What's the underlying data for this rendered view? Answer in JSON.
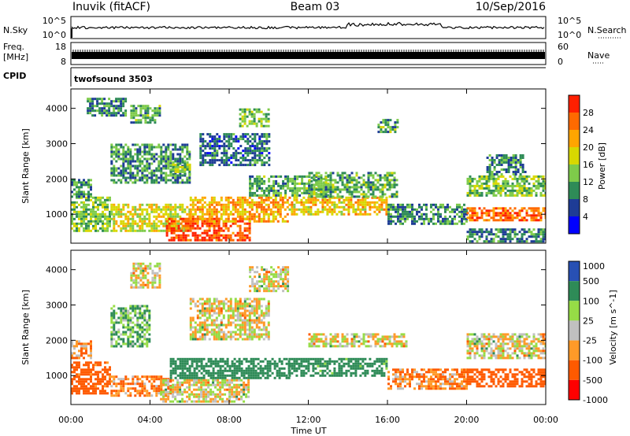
{
  "header": {
    "station": "Inuvik (fitACF)",
    "beam": "Beam 03",
    "date": "10/Sep/2016"
  },
  "noise_panel": {
    "left_label": "N.Sky",
    "right_label": "N.Search",
    "left_ticks": [
      "10^5",
      "10^0"
    ],
    "right_ticks": [
      "10^5",
      "10^0"
    ]
  },
  "freq_panel": {
    "left_label": "Freq.",
    "left_unit": "[MHz]",
    "right_label": "Nave",
    "left_ticks": [
      "18",
      "8"
    ],
    "right_ticks": [
      "60",
      "0"
    ]
  },
  "cpid": {
    "label": "CPID",
    "value": "twofsound 3503"
  },
  "colors": {
    "power": [
      "#0000ff",
      "#1e3c96",
      "#2e8b57",
      "#7ecb4a",
      "#d8d800",
      "#ffa500",
      "#ff6a00",
      "#ff2000"
    ],
    "velocity": [
      "#ff0000",
      "#ff5a00",
      "#ff9a28",
      "#c0c0c0",
      "#96dc46",
      "#2e8b57",
      "#2850b4"
    ]
  },
  "chart_data": [
    {
      "type": "heatmap",
      "title": "",
      "xlabel": "Time UT",
      "ylabel": "Slant Range [km]",
      "x_ticks": [
        "00:00",
        "04:00",
        "08:00",
        "12:00",
        "16:00",
        "20:00",
        "00:00"
      ],
      "y_ticks": [
        1000,
        2000,
        3000,
        4000
      ],
      "xlim": [
        0,
        24
      ],
      "ylim": [
        180,
        4550
      ],
      "colorbar_label": "Power [dB]",
      "colorbar_ticks": [
        4,
        8,
        12,
        16,
        20,
        24,
        28
      ],
      "grid": false,
      "regions": [
        {
          "t": [
            0,
            2
          ],
          "r": [
            500,
            1500
          ],
          "value": 14
        },
        {
          "t": [
            0,
            1
          ],
          "r": [
            1500,
            2000
          ],
          "value": 10
        },
        {
          "t": [
            0.8,
            2.8
          ],
          "r": [
            3800,
            4300
          ],
          "value": 9
        },
        {
          "t": [
            2,
            6
          ],
          "r": [
            500,
            1300
          ],
          "value": 18
        },
        {
          "t": [
            2,
            6
          ],
          "r": [
            1900,
            3000
          ],
          "value": 10
        },
        {
          "t": [
            3,
            4.5
          ],
          "r": [
            3600,
            4100
          ],
          "value": 12
        },
        {
          "t": [
            4.8,
            9
          ],
          "r": [
            250,
            900
          ],
          "value": 28
        },
        {
          "t": [
            5,
            6
          ],
          "r": [
            2100,
            2500
          ],
          "value": 15
        },
        {
          "t": [
            6,
            11
          ],
          "r": [
            800,
            1500
          ],
          "value": 22
        },
        {
          "t": [
            6.5,
            10
          ],
          "r": [
            2400,
            3300
          ],
          "value": 8
        },
        {
          "t": [
            8.5,
            10
          ],
          "r": [
            3500,
            4000
          ],
          "value": 14
        },
        {
          "t": [
            9,
            13
          ],
          "r": [
            1500,
            2100
          ],
          "value": 12
        },
        {
          "t": [
            11,
            16
          ],
          "r": [
            1000,
            1500
          ],
          "value": 20
        },
        {
          "t": [
            12,
            16.5
          ],
          "r": [
            1500,
            2200
          ],
          "value": 12
        },
        {
          "t": [
            16,
            20
          ],
          "r": [
            700,
            1300
          ],
          "value": 10
        },
        {
          "t": [
            15.5,
            16.5
          ],
          "r": [
            3300,
            3700
          ],
          "value": 12
        },
        {
          "t": [
            20,
            24
          ],
          "r": [
            800,
            1200
          ],
          "value": 26
        },
        {
          "t": [
            20,
            24
          ],
          "r": [
            1500,
            2100
          ],
          "value": 14
        },
        {
          "t": [
            21,
            23
          ],
          "r": [
            2100,
            2700
          ],
          "value": 10
        },
        {
          "t": [
            20,
            24
          ],
          "r": [
            200,
            600
          ],
          "value": 9
        }
      ]
    },
    {
      "type": "heatmap",
      "title": "",
      "xlabel": "Time UT",
      "ylabel": "Slant Range [km]",
      "x_ticks": [
        "00:00",
        "04:00",
        "08:00",
        "12:00",
        "16:00",
        "20:00",
        "00:00"
      ],
      "y_ticks": [
        1000,
        2000,
        3000,
        4000
      ],
      "xlim": [
        0,
        24
      ],
      "ylim": [
        180,
        4550
      ],
      "colorbar_label": "Velocity [m s^-1]",
      "colorbar_ticks": [
        1000,
        500,
        100,
        25,
        -25,
        -100,
        -500,
        -1000
      ],
      "grid": false,
      "regions": [
        {
          "t": [
            0,
            2
          ],
          "r": [
            500,
            1400
          ],
          "value": -200
        },
        {
          "t": [
            0,
            1
          ],
          "r": [
            1500,
            2000
          ],
          "value": -100
        },
        {
          "t": [
            2,
            5
          ],
          "r": [
            400,
            1000
          ],
          "value": -100
        },
        {
          "t": [
            2,
            4
          ],
          "r": [
            1800,
            3000
          ],
          "value": 100
        },
        {
          "t": [
            3,
            4.5
          ],
          "r": [
            3500,
            4200
          ],
          "value": 0
        },
        {
          "t": [
            4.5,
            9
          ],
          "r": [
            250,
            900
          ],
          "value": 0
        },
        {
          "t": [
            5,
            11
          ],
          "r": [
            900,
            1500
          ],
          "value": 300
        },
        {
          "t": [
            6,
            10
          ],
          "r": [
            2000,
            3200
          ],
          "value": 0
        },
        {
          "t": [
            9,
            11
          ],
          "r": [
            3400,
            4100
          ],
          "value": 0
        },
        {
          "t": [
            11,
            16
          ],
          "r": [
            1000,
            1500
          ],
          "value": 200
        },
        {
          "t": [
            12,
            17
          ],
          "r": [
            1800,
            2200
          ],
          "value": 0
        },
        {
          "t": [
            16,
            20
          ],
          "r": [
            600,
            1200
          ],
          "value": -100
        },
        {
          "t": [
            20,
            24
          ],
          "r": [
            700,
            1200
          ],
          "value": -300
        },
        {
          "t": [
            20,
            24
          ],
          "r": [
            1500,
            2200
          ],
          "value": 0
        }
      ]
    }
  ]
}
